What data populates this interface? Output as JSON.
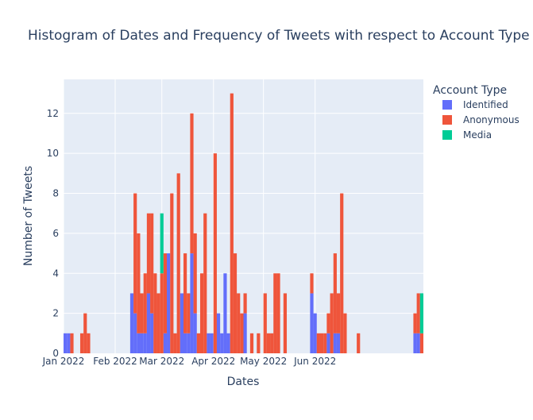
{
  "chart_data": {
    "type": "bar",
    "barmode": "stack",
    "title": "Histogram of Dates and Frequency of Tweets with respect to Account Type",
    "xlabel": "Dates",
    "ylabel": "Number of Tweets",
    "ylim": [
      0,
      13.7
    ],
    "y_ticks": [
      0,
      2,
      4,
      6,
      8,
      10,
      12
    ],
    "x_ticks": [
      {
        "value": "2022-01-01",
        "label": "Jan 2022"
      },
      {
        "value": "2022-02-01",
        "label": "Feb 2022"
      },
      {
        "value": "2022-03-01",
        "label": "Mar 2022"
      },
      {
        "value": "2022-04-01",
        "label": "Apr 2022"
      },
      {
        "value": "2022-05-01",
        "label": "May 2022"
      },
      {
        "value": "2022-06-01",
        "label": "Jun 2022"
      }
    ],
    "x_start": "2022-01-01",
    "bin_width_days": 2,
    "grid": true,
    "legend_title": "Account Type",
    "legend_position": "top-right",
    "series": [
      {
        "name": "Identified",
        "color": "#636efa",
        "values": [
          1,
          1,
          0,
          0,
          0,
          0,
          0,
          0,
          0,
          0,
          0,
          0,
          0,
          0,
          0,
          0,
          0,
          0,
          0,
          0,
          3,
          2,
          1,
          1,
          1,
          3,
          2,
          0,
          0,
          0,
          1,
          5,
          0,
          0,
          0,
          3,
          1,
          1,
          5,
          2,
          0,
          0,
          0,
          1,
          1,
          0,
          2,
          1,
          4,
          1,
          0,
          0,
          0,
          0,
          2,
          0,
          0,
          0,
          0,
          0,
          0,
          0,
          0,
          0,
          0,
          0,
          0,
          0,
          0,
          0,
          0,
          0,
          0,
          0,
          3,
          2,
          0,
          0,
          0,
          1,
          0,
          1,
          1,
          0,
          0,
          0,
          0,
          0,
          0,
          0,
          0,
          0,
          0,
          0,
          0,
          0,
          0,
          0,
          0,
          0,
          0,
          0,
          0,
          0,
          0,
          1,
          1,
          0
        ]
      },
      {
        "name": "Anonymous",
        "color": "#ef553b",
        "values": [
          0,
          0,
          1,
          0,
          0,
          1,
          2,
          1,
          0,
          0,
          0,
          0,
          0,
          0,
          0,
          0,
          0,
          0,
          0,
          0,
          0,
          6,
          5,
          2,
          3,
          4,
          5,
          4,
          3,
          4,
          4,
          0,
          8,
          1,
          9,
          0,
          4,
          2,
          7,
          4,
          1,
          4,
          7,
          0,
          0,
          10,
          0,
          0,
          0,
          0,
          13,
          5,
          3,
          2,
          1,
          0,
          1,
          0,
          1,
          0,
          3,
          1,
          1,
          4,
          4,
          0,
          3,
          0,
          0,
          0,
          0,
          0,
          0,
          0,
          1,
          0,
          1,
          1,
          1,
          1,
          3,
          4,
          2,
          8,
          2,
          0,
          0,
          0,
          1,
          0,
          0,
          0,
          0,
          0,
          0,
          0,
          0,
          0,
          0,
          0,
          0,
          0,
          0,
          0,
          0,
          1,
          2,
          1
        ]
      },
      {
        "name": "Media",
        "color": "#00cc96",
        "values": [
          0,
          0,
          0,
          0,
          0,
          0,
          0,
          0,
          0,
          0,
          0,
          0,
          0,
          0,
          0,
          0,
          0,
          0,
          0,
          0,
          0,
          0,
          0,
          0,
          0,
          0,
          0,
          0,
          0,
          3,
          0,
          0,
          0,
          0,
          0,
          0,
          0,
          0,
          0,
          0,
          0,
          0,
          0,
          0,
          0,
          0,
          0,
          0,
          0,
          0,
          0,
          0,
          0,
          0,
          0,
          0,
          0,
          0,
          0,
          0,
          0,
          0,
          0,
          0,
          0,
          0,
          0,
          0,
          0,
          0,
          0,
          0,
          0,
          0,
          0,
          0,
          0,
          0,
          0,
          0,
          0,
          0,
          0,
          0,
          0,
          0,
          0,
          0,
          0,
          0,
          0,
          0,
          0,
          0,
          0,
          0,
          0,
          0,
          0,
          0,
          0,
          0,
          0,
          0,
          0,
          0,
          0,
          2
        ]
      }
    ]
  }
}
